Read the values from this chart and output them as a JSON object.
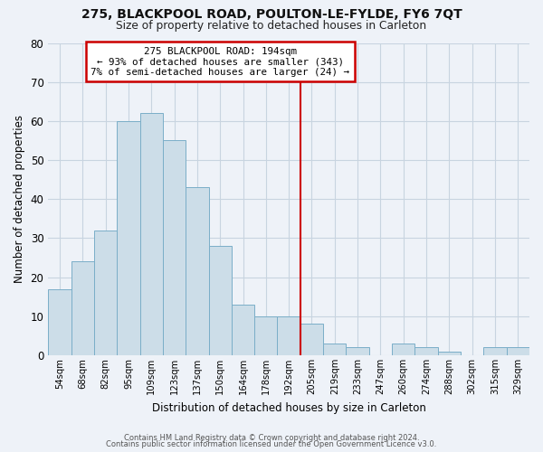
{
  "title": "275, BLACKPOOL ROAD, POULTON-LE-FYLDE, FY6 7QT",
  "subtitle": "Size of property relative to detached houses in Carleton",
  "xlabel": "Distribution of detached houses by size in Carleton",
  "ylabel": "Number of detached properties",
  "bin_labels": [
    "54sqm",
    "68sqm",
    "82sqm",
    "95sqm",
    "109sqm",
    "123sqm",
    "137sqm",
    "150sqm",
    "164sqm",
    "178sqm",
    "192sqm",
    "205sqm",
    "219sqm",
    "233sqm",
    "247sqm",
    "260sqm",
    "274sqm",
    "288sqm",
    "302sqm",
    "315sqm",
    "329sqm"
  ],
  "bar_heights": [
    17,
    24,
    32,
    60,
    62,
    55,
    43,
    28,
    13,
    10,
    10,
    8,
    3,
    2,
    0,
    3,
    2,
    1,
    0,
    2,
    2
  ],
  "bar_color": "#ccdde8",
  "bar_edge_color": "#7aaec8",
  "grid_color": "#c8d4e0",
  "background_color": "#eef2f8",
  "vline_x": 10.5,
  "vline_color": "#cc0000",
  "annotation_box_text": "275 BLACKPOOL ROAD: 194sqm\n← 93% of detached houses are smaller (343)\n7% of semi-detached houses are larger (24) →",
  "annotation_box_color": "#cc0000",
  "ylim": [
    0,
    80
  ],
  "yticks": [
    0,
    10,
    20,
    30,
    40,
    50,
    60,
    70,
    80
  ],
  "footer_line1": "Contains HM Land Registry data © Crown copyright and database right 2024.",
  "footer_line2": "Contains public sector information licensed under the Open Government Licence v3.0."
}
